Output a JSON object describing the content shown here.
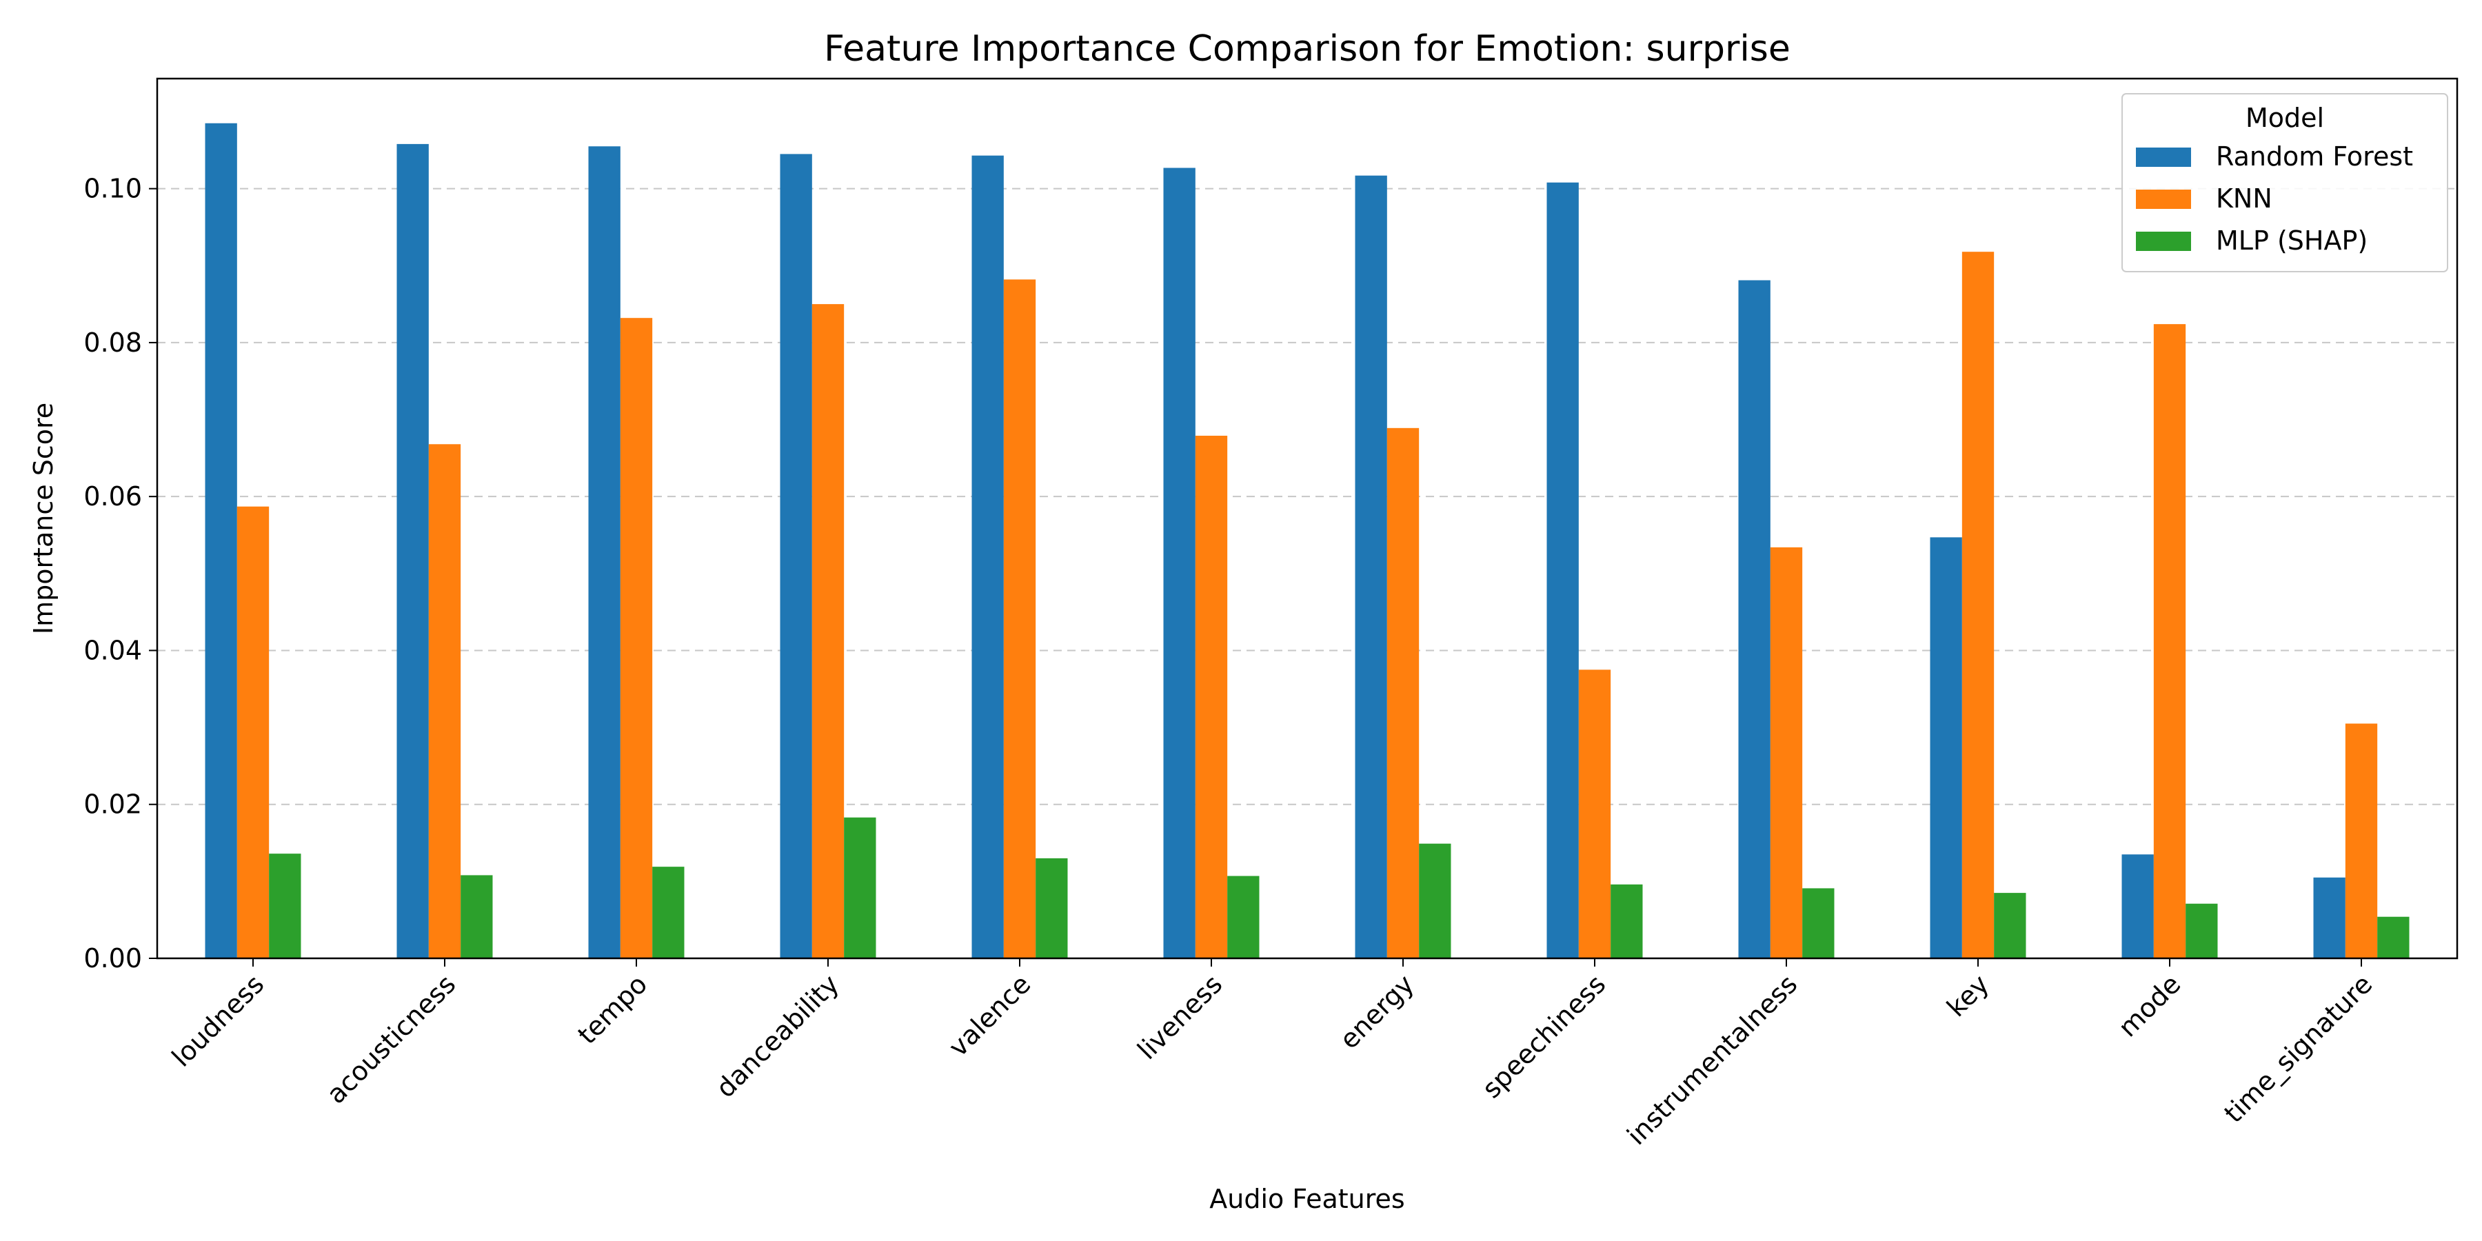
{
  "chart_data": {
    "type": "bar",
    "title": "Feature Importance Comparison for Emotion: surprise",
    "xlabel": "Audio Features",
    "ylabel": "Importance Score",
    "ylim": [
      0,
      0.1143
    ],
    "yticks": [
      "0.00",
      "0.02",
      "0.04",
      "0.06",
      "0.08",
      "0.10"
    ],
    "ytick_values": [
      0,
      0.02,
      0.04,
      0.06,
      0.08,
      0.1
    ],
    "grid": "y-dashed",
    "legend": {
      "title": "Model",
      "placement": "top-right"
    },
    "categories": [
      "loudness",
      "acousticness",
      "tempo",
      "danceability",
      "valence",
      "liveness",
      "energy",
      "speechiness",
      "instrumentalness",
      "key",
      "mode",
      "time_signature"
    ],
    "series": [
      {
        "name": "Random Forest",
        "color": "#1f77b4",
        "values": [
          0.1085,
          0.1058,
          0.1055,
          0.1045,
          0.1043,
          0.1027,
          0.1017,
          0.1008,
          0.0881,
          0.0547,
          0.0135,
          0.0105
        ]
      },
      {
        "name": "KNN",
        "color": "#ff7f0e",
        "values": [
          0.0587,
          0.0668,
          0.0832,
          0.085,
          0.0882,
          0.0679,
          0.0689,
          0.0375,
          0.0534,
          0.0918,
          0.0824,
          0.0305
        ]
      },
      {
        "name": "MLP (SHAP)",
        "color": "#2ca02c",
        "values": [
          0.0136,
          0.0108,
          0.0119,
          0.0183,
          0.013,
          0.0107,
          0.0149,
          0.0096,
          0.0091,
          0.0085,
          0.0071,
          0.0054
        ]
      }
    ]
  }
}
